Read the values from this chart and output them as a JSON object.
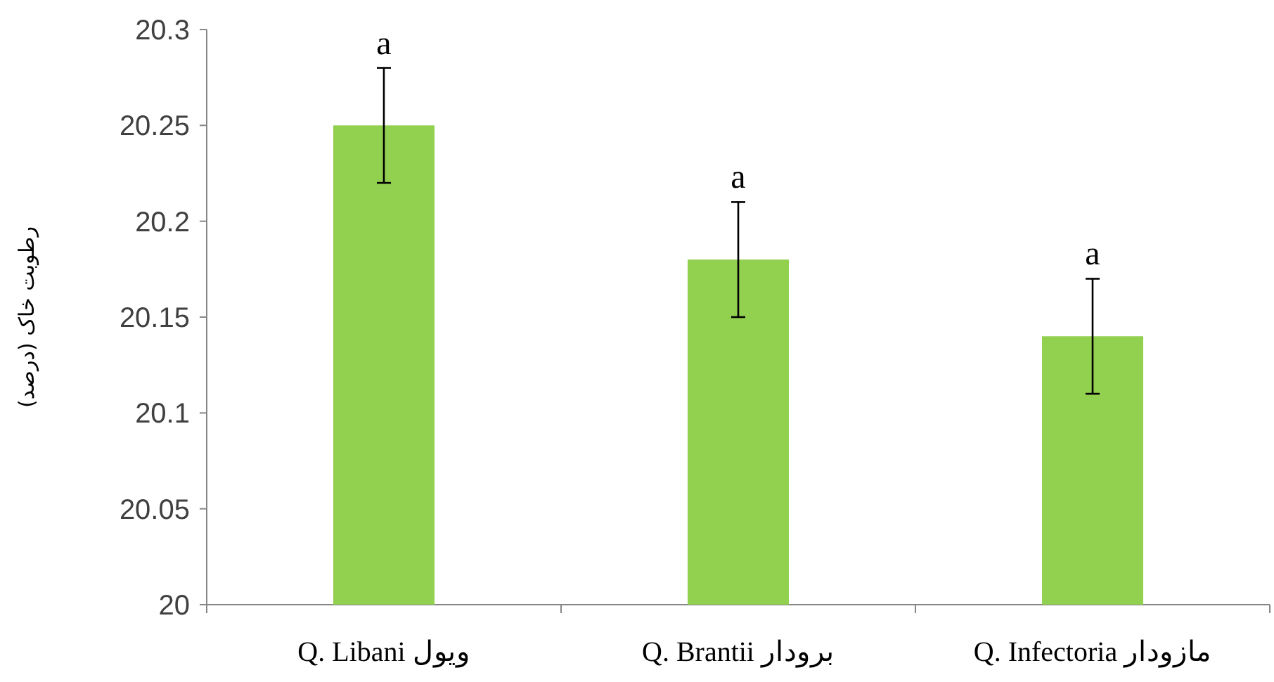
{
  "chart_data": {
    "type": "bar",
    "ylabel": "رطوبت خاک (درصد)",
    "categories": [
      "Q. Libani ویول",
      "Q. Brantii برودار",
      "Q. Infectoria مازودار"
    ],
    "values": [
      20.25,
      20.18,
      20.14
    ],
    "errors": [
      0.03,
      0.03,
      0.03
    ],
    "color": "#92d050",
    "ylim": [
      20,
      20.3
    ],
    "yticks": [
      20,
      20.05,
      20.1,
      20.15,
      20.2,
      20.25,
      20.3
    ],
    "grid": false,
    "annotations": [
      "a",
      "a",
      "a"
    ]
  }
}
